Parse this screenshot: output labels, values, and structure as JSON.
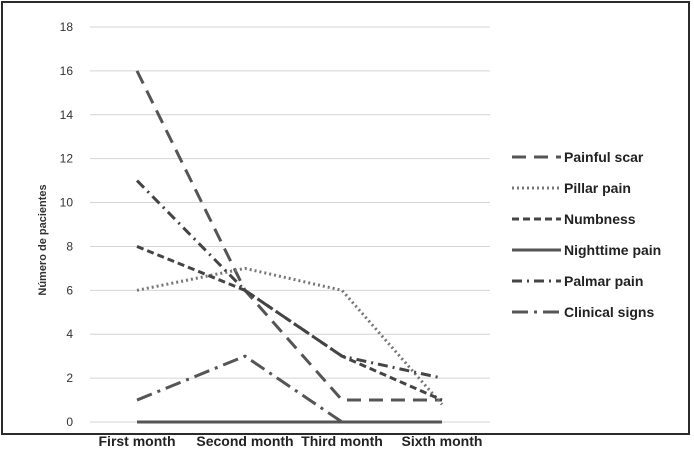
{
  "chart_data": {
    "type": "line",
    "title": "",
    "xlabel": "",
    "ylabel": "Número de pacientes",
    "categories": [
      "First month",
      "Second month",
      "Third month",
      "Sixth month"
    ],
    "ylim": [
      0,
      18
    ],
    "yticks": [
      0,
      2,
      4,
      6,
      8,
      10,
      12,
      14,
      16,
      18
    ],
    "grid": true,
    "legend_position": "right",
    "series": [
      {
        "name": "Painful scar",
        "values": [
          16,
          6,
          1,
          1
        ],
        "dash": "long-dash",
        "color": "#555555"
      },
      {
        "name": "Pillar pain",
        "values": [
          6,
          7,
          6,
          0.8
        ],
        "dash": "dotted",
        "color": "#777777"
      },
      {
        "name": "Numbness",
        "values": [
          8,
          6,
          3,
          1
        ],
        "dash": "short-dash",
        "color": "#444444"
      },
      {
        "name": "Nighttime pain",
        "values": [
          0,
          0,
          0,
          0
        ],
        "dash": "solid",
        "color": "#555555"
      },
      {
        "name": "Palmar pain",
        "values": [
          11,
          6,
          3,
          2
        ],
        "dash": "dash-dot",
        "color": "#444444"
      },
      {
        "name": "Clinical signs",
        "values": [
          1,
          3,
          0,
          null
        ],
        "dash": "long-dash-dot",
        "color": "#555555"
      }
    ]
  }
}
